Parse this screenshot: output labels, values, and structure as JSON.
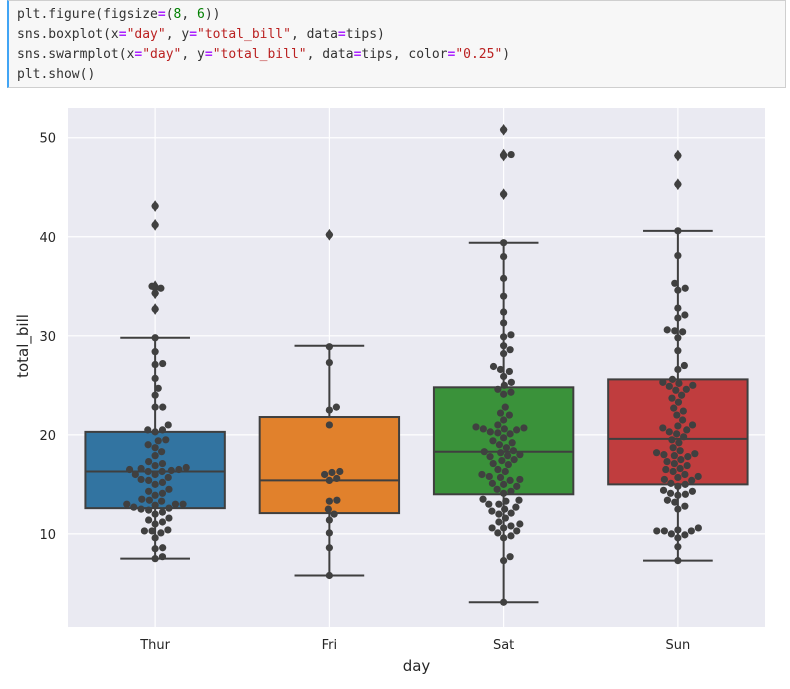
{
  "code_cell": {
    "lines": [
      [
        {
          "t": "plt.figure(figsize",
          "c": "fn"
        },
        {
          "t": "=",
          "c": "op"
        },
        {
          "t": "(",
          "c": "fn"
        },
        {
          "t": "8",
          "c": "num"
        },
        {
          "t": ", ",
          "c": "fn"
        },
        {
          "t": "6",
          "c": "num"
        },
        {
          "t": "))",
          "c": "fn"
        }
      ],
      [
        {
          "t": "sns.boxplot(x",
          "c": "fn"
        },
        {
          "t": "=",
          "c": "op"
        },
        {
          "t": "\"day\"",
          "c": "str"
        },
        {
          "t": ", y",
          "c": "fn"
        },
        {
          "t": "=",
          "c": "op"
        },
        {
          "t": "\"total_bill\"",
          "c": "str"
        },
        {
          "t": ", data",
          "c": "fn"
        },
        {
          "t": "=",
          "c": "op"
        },
        {
          "t": "tips)",
          "c": "fn"
        }
      ],
      [
        {
          "t": "sns.swarmplot(x",
          "c": "fn"
        },
        {
          "t": "=",
          "c": "op"
        },
        {
          "t": "\"day\"",
          "c": "str"
        },
        {
          "t": ", y",
          "c": "fn"
        },
        {
          "t": "=",
          "c": "op"
        },
        {
          "t": "\"total_bill\"",
          "c": "str"
        },
        {
          "t": ", data",
          "c": "fn"
        },
        {
          "t": "=",
          "c": "op"
        },
        {
          "t": "tips, color",
          "c": "fn"
        },
        {
          "t": "=",
          "c": "op"
        },
        {
          "t": "\"0.25\"",
          "c": "str"
        },
        {
          "t": ")",
          "c": "fn"
        }
      ],
      [
        {
          "t": "plt.show()",
          "c": "fn"
        }
      ]
    ]
  },
  "chart_data": {
    "type": "box",
    "xlabel": "day",
    "ylabel": "total_bill",
    "categories": [
      "Thur",
      "Fri",
      "Sat",
      "Sun"
    ],
    "ylim": [
      0.6,
      53
    ],
    "yticks": [
      10,
      20,
      30,
      40,
      50
    ],
    "grid": true,
    "background": "#eaeaf2",
    "swarm_color": "#404040",
    "boxes": [
      {
        "category": "Thur",
        "color": "#3274a1",
        "whisker_low": 7.5,
        "q1": 12.6,
        "median": 16.3,
        "q3": 20.3,
        "whisker_high": 29.8,
        "outliers": [
          32.7,
          34.3,
          34.8,
          35.0,
          41.2,
          43.1
        ]
      },
      {
        "category": "Fri",
        "color": "#e1812c",
        "whisker_low": 5.8,
        "q1": 12.1,
        "median": 15.4,
        "q3": 21.8,
        "whisker_high": 29.0,
        "outliers": [
          40.2
        ]
      },
      {
        "category": "Sat",
        "color": "#3a923a",
        "whisker_low": 3.1,
        "q1": 14.0,
        "median": 18.3,
        "q3": 24.8,
        "whisker_high": 39.4,
        "outliers": [
          44.3,
          48.2,
          48.3,
          50.8
        ]
      },
      {
        "category": "Sun",
        "color": "#c03d3e",
        "whisker_low": 7.3,
        "q1": 15.0,
        "median": 19.6,
        "q3": 25.6,
        "whisker_high": 40.6,
        "outliers": [
          45.3,
          48.2
        ]
      }
    ],
    "swarm": [
      {
        "category": "Thur",
        "values": [
          7.5,
          7.7,
          8.5,
          8.6,
          9.6,
          10.1,
          10.3,
          10.3,
          10.4,
          11.0,
          11.2,
          11.4,
          11.6,
          12.0,
          12.2,
          12.4,
          12.5,
          12.6,
          12.7,
          12.9,
          13.0,
          13.0,
          13.0,
          13.3,
          13.4,
          13.5,
          13.9,
          14.1,
          14.3,
          14.5,
          15.0,
          15.2,
          15.4,
          15.5,
          15.7,
          16.0,
          16.0,
          16.3,
          16.3,
          16.4,
          16.5,
          16.5,
          16.6,
          16.7,
          16.9,
          17.1,
          17.3,
          17.9,
          18.3,
          18.7,
          19.0,
          19.4,
          19.5,
          20.3,
          20.5,
          20.5,
          21.0,
          22.8,
          22.8,
          24.0,
          24.7,
          25.7,
          27.1,
          27.2,
          28.4,
          29.8,
          32.7,
          34.3,
          34.8,
          35.0,
          41.2,
          43.1
        ]
      },
      {
        "category": "Fri",
        "values": [
          5.8,
          8.6,
          10.1,
          11.4,
          12.0,
          12.5,
          13.3,
          13.4,
          15.4,
          15.6,
          16.0,
          16.2,
          16.3,
          21.0,
          22.5,
          22.8,
          27.3,
          28.9,
          40.2
        ]
      },
      {
        "category": "Sat",
        "values": [
          3.1,
          7.3,
          7.7,
          9.6,
          9.8,
          10.1,
          10.3,
          10.6,
          10.6,
          10.8,
          11.0,
          11.2,
          11.6,
          12.0,
          12.1,
          12.3,
          12.5,
          12.7,
          13.0,
          13.0,
          13.3,
          13.4,
          13.5,
          14.1,
          14.3,
          14.5,
          14.8,
          15.0,
          15.1,
          15.4,
          15.5,
          15.7,
          15.8,
          16.0,
          16.3,
          16.5,
          17.0,
          17.1,
          17.4,
          17.5,
          17.8,
          17.9,
          18.0,
          18.2,
          18.3,
          18.4,
          18.7,
          19.0,
          19.2,
          19.4,
          19.7,
          20.1,
          20.2,
          20.3,
          20.5,
          20.6,
          20.6,
          20.7,
          20.8,
          21.0,
          21.5,
          22.0,
          22.2,
          22.8,
          24.1,
          24.3,
          24.6,
          25.0,
          25.3,
          25.9,
          26.4,
          26.6,
          26.9,
          28.2,
          28.6,
          29.0,
          29.9,
          30.1,
          31.3,
          32.4,
          34.0,
          35.8,
          38.0,
          39.4,
          44.3,
          48.2,
          48.3,
          50.8
        ]
      },
      {
        "category": "Sun",
        "values": [
          7.3,
          8.7,
          9.6,
          9.9,
          10.0,
          10.3,
          10.3,
          10.3,
          10.4,
          10.6,
          12.5,
          12.8,
          13.2,
          13.4,
          13.9,
          14.0,
          14.1,
          14.3,
          14.4,
          14.8,
          15.0,
          15.1,
          15.4,
          15.5,
          15.7,
          15.8,
          16.0,
          16.3,
          16.5,
          16.6,
          16.9,
          17.1,
          17.3,
          17.5,
          17.8,
          17.9,
          18.0,
          18.1,
          18.2,
          18.4,
          18.7,
          19.2,
          19.5,
          19.8,
          20.1,
          20.3,
          20.5,
          20.7,
          20.9,
          21.0,
          21.5,
          22.0,
          22.4,
          22.7,
          23.3,
          23.7,
          24.0,
          24.5,
          24.6,
          24.9,
          25.0,
          25.2,
          25.3,
          25.6,
          26.6,
          27.0,
          28.5,
          29.8,
          30.4,
          30.5,
          30.6,
          31.8,
          32.1,
          32.8,
          34.6,
          34.8,
          35.3,
          38.1,
          40.6,
          45.3,
          48.2
        ]
      }
    ]
  }
}
